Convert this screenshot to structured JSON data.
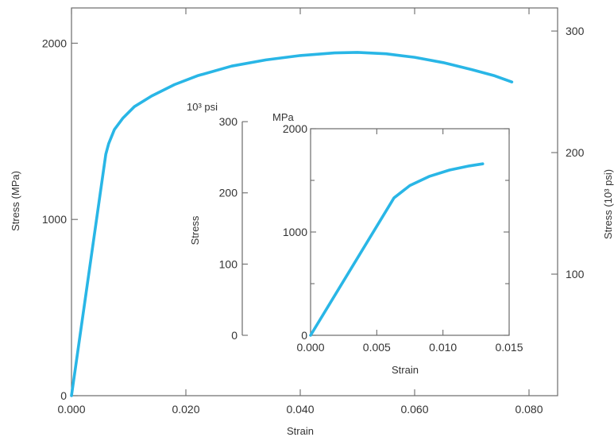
{
  "chart_data": [
    {
      "type": "line",
      "title": "",
      "xlabel": "Strain",
      "ylabel": "Stress (MPa)",
      "y2label": "Stress (10³ psi)",
      "xlim": [
        0,
        0.085
      ],
      "ylim": [
        0,
        2200
      ],
      "y2lim": [
        0,
        319
      ],
      "x_ticks": [
        "0.000",
        "0.020",
        "0.040",
        "0.060",
        "0.080"
      ],
      "y_ticks": [
        "0",
        "1000",
        "2000"
      ],
      "y2_ticks": [
        "100",
        "200",
        "300"
      ],
      "grid": false,
      "series": [
        {
          "color": "#29b6e6",
          "x": [
            0,
            0.006,
            0.0065,
            0.0075,
            0.009,
            0.011,
            0.014,
            0.018,
            0.022,
            0.028,
            0.034,
            0.04,
            0.046,
            0.05,
            0.055,
            0.06,
            0.065,
            0.07,
            0.074,
            0.077
          ],
          "y": [
            0,
            1370,
            1430,
            1510,
            1575,
            1640,
            1700,
            1765,
            1815,
            1870,
            1905,
            1930,
            1945,
            1948,
            1940,
            1920,
            1890,
            1850,
            1815,
            1780
          ]
        }
      ]
    },
    {
      "type": "line",
      "title": "",
      "xlabel": "Strain",
      "ylabel": "Stress",
      "y_left_unit": "10³ psi",
      "y_right_unit": "MPa",
      "xlim": [
        0,
        0.015
      ],
      "ylim": [
        0,
        2000
      ],
      "x_ticks": [
        "0.000",
        "0.005",
        "0.010",
        "0.015"
      ],
      "y_ticks_mpa": [
        "0",
        "1000",
        "2000"
      ],
      "y_ticks_psi": [
        "0",
        "100",
        "200",
        "300"
      ],
      "grid": false,
      "series": [
        {
          "color": "#29b6e6",
          "x": [
            0,
            0.0063,
            0.0075,
            0.009,
            0.0105,
            0.012,
            0.013
          ],
          "y": [
            0,
            1330,
            1450,
            1540,
            1600,
            1640,
            1660
          ]
        }
      ]
    }
  ]
}
